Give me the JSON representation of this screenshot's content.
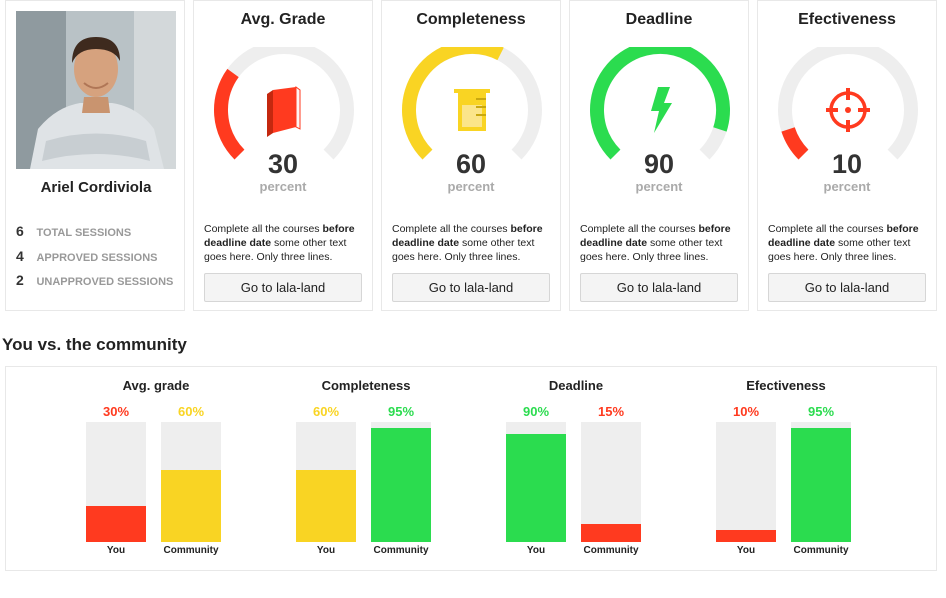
{
  "colors": {
    "red": "#ff3a1f",
    "yellow": "#f9d423",
    "green": "#2bdc4f",
    "track": "#eeeeee"
  },
  "profile": {
    "name": "Ariel Cordiviola",
    "stats": [
      {
        "num": "6",
        "label": "TOTAL SESSIONS"
      },
      {
        "num": "4",
        "label": "APPROVED SESSIONS"
      },
      {
        "num": "2",
        "label": "UNAPPROVED SESSIONS"
      }
    ]
  },
  "metrics": [
    {
      "title": "Avg. Grade",
      "value": 30,
      "unit": "percent",
      "color": "#ff3a1f",
      "icon": "book-icon",
      "desc_pre": "Complete all the courses ",
      "desc_bold": "before deadline date",
      "desc_post": " some other text goes here. Only three lines.",
      "button": "Go to lala-land"
    },
    {
      "title": "Completeness",
      "value": 60,
      "unit": "percent",
      "color": "#f9d423",
      "icon": "beaker-icon",
      "desc_pre": "Complete all the courses ",
      "desc_bold": "before deadline date",
      "desc_post": " some other text goes here. Only three lines.",
      "button": "Go to lala-land"
    },
    {
      "title": "Deadline",
      "value": 90,
      "unit": "percent",
      "color": "#2bdc4f",
      "icon": "lightning-icon",
      "desc_pre": "Complete all the courses ",
      "desc_bold": "before deadline date",
      "desc_post": " some other text goes here. Only three lines.",
      "button": "Go to lala-land"
    },
    {
      "title": "Efectiveness",
      "value": 10,
      "unit": "percent",
      "color": "#ff3a1f",
      "icon": "target-icon",
      "desc_pre": "Complete all the courses ",
      "desc_bold": "before deadline date",
      "desc_post": " some other text goes here. Only three lines.",
      "button": "Go to lala-land"
    }
  ],
  "community": {
    "title": "You vs. the community",
    "groups": [
      {
        "title": "Avg. grade",
        "you": {
          "label": "You",
          "value": 30,
          "text": "30%",
          "color": "#ff3a1f"
        },
        "community": {
          "label": "Community",
          "value": 60,
          "text": "60%",
          "color": "#f9d423"
        }
      },
      {
        "title": "Completeness",
        "you": {
          "label": "You",
          "value": 60,
          "text": "60%",
          "color": "#f9d423"
        },
        "community": {
          "label": "Community",
          "value": 95,
          "text": "95%",
          "color": "#2bdc4f"
        }
      },
      {
        "title": "Deadline",
        "you": {
          "label": "You",
          "value": 90,
          "text": "90%",
          "color": "#2bdc4f"
        },
        "community": {
          "label": "Community",
          "value": 15,
          "text": "15%",
          "color": "#ff3a1f"
        }
      },
      {
        "title": "Efectiveness",
        "you": {
          "label": "You",
          "value": 10,
          "text": "10%",
          "color": "#ff3a1f"
        },
        "community": {
          "label": "Community",
          "value": 95,
          "text": "95%",
          "color": "#2bdc4f"
        }
      }
    ]
  }
}
